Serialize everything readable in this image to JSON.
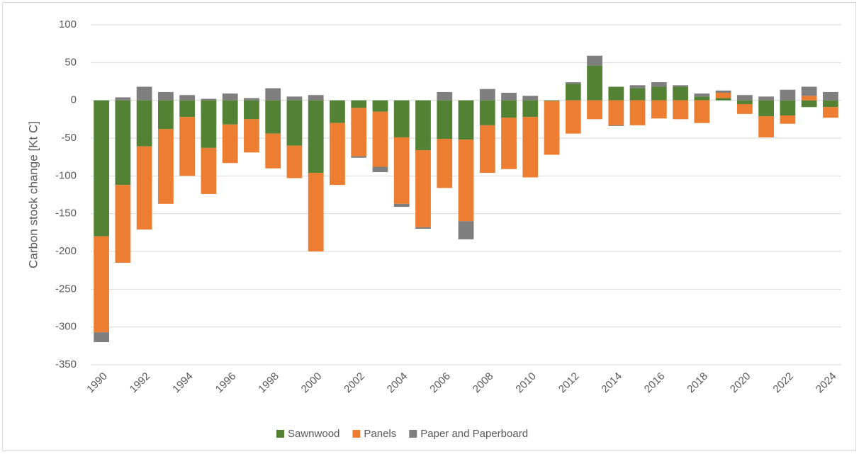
{
  "chart_data": {
    "type": "stacked_bar",
    "y_label": "Carbon stock change [Kt C]",
    "categories": [
      "1990",
      null,
      "1992",
      null,
      "1994",
      null,
      "1996",
      null,
      "1998",
      null,
      "2000",
      null,
      "2002",
      null,
      "2004",
      null,
      "2006",
      null,
      "2008",
      null,
      "2010",
      null,
      "2012",
      null,
      "2014",
      null,
      "2016",
      null,
      "2018",
      null,
      "2020",
      null,
      "2022",
      null,
      "2024"
    ],
    "series": [
      {
        "name": "Sawnwood",
        "color": "#548235",
        "values": [
          -180,
          -112,
          -61,
          -38,
          -22,
          -63,
          -32,
          -25,
          -44,
          -60,
          -96,
          -30,
          -10,
          -15,
          -49,
          -66,
          -51,
          -52,
          -33,
          -23,
          -22,
          -1,
          22,
          46,
          18,
          16,
          18,
          18,
          5,
          3,
          -5,
          -21,
          -20,
          -9,
          -9
        ]
      },
      {
        "name": "Panels",
        "color": "#ed7d31",
        "values": [
          -127,
          -103,
          -110,
          -99,
          -78,
          -61,
          -51,
          -44,
          -46,
          -43,
          -104,
          -82,
          -64,
          -73,
          -88,
          -102,
          -65,
          -108,
          -63,
          -68,
          -80,
          -71,
          -44,
          -25,
          -33,
          -33,
          -24,
          -25,
          -30,
          7,
          -13,
          -28,
          -11,
          6,
          -14
        ]
      },
      {
        "name": "Paper and Paperboard",
        "color": "#7f7f7f",
        "values": [
          -13,
          4,
          18,
          11,
          7,
          2,
          9,
          3,
          16,
          5,
          7,
          0,
          -2,
          -7,
          -4,
          -2,
          11,
          -24,
          15,
          10,
          6,
          0,
          2,
          13,
          -1,
          4,
          6,
          2,
          4,
          3,
          7,
          5,
          14,
          12,
          11
        ]
      }
    ],
    "ylim": [
      -350,
      100
    ],
    "yticks": [
      -350,
      -300,
      -250,
      -200,
      -150,
      -100,
      -50,
      0,
      50,
      100
    ],
    "grid": true,
    "legend": "bottom"
  }
}
